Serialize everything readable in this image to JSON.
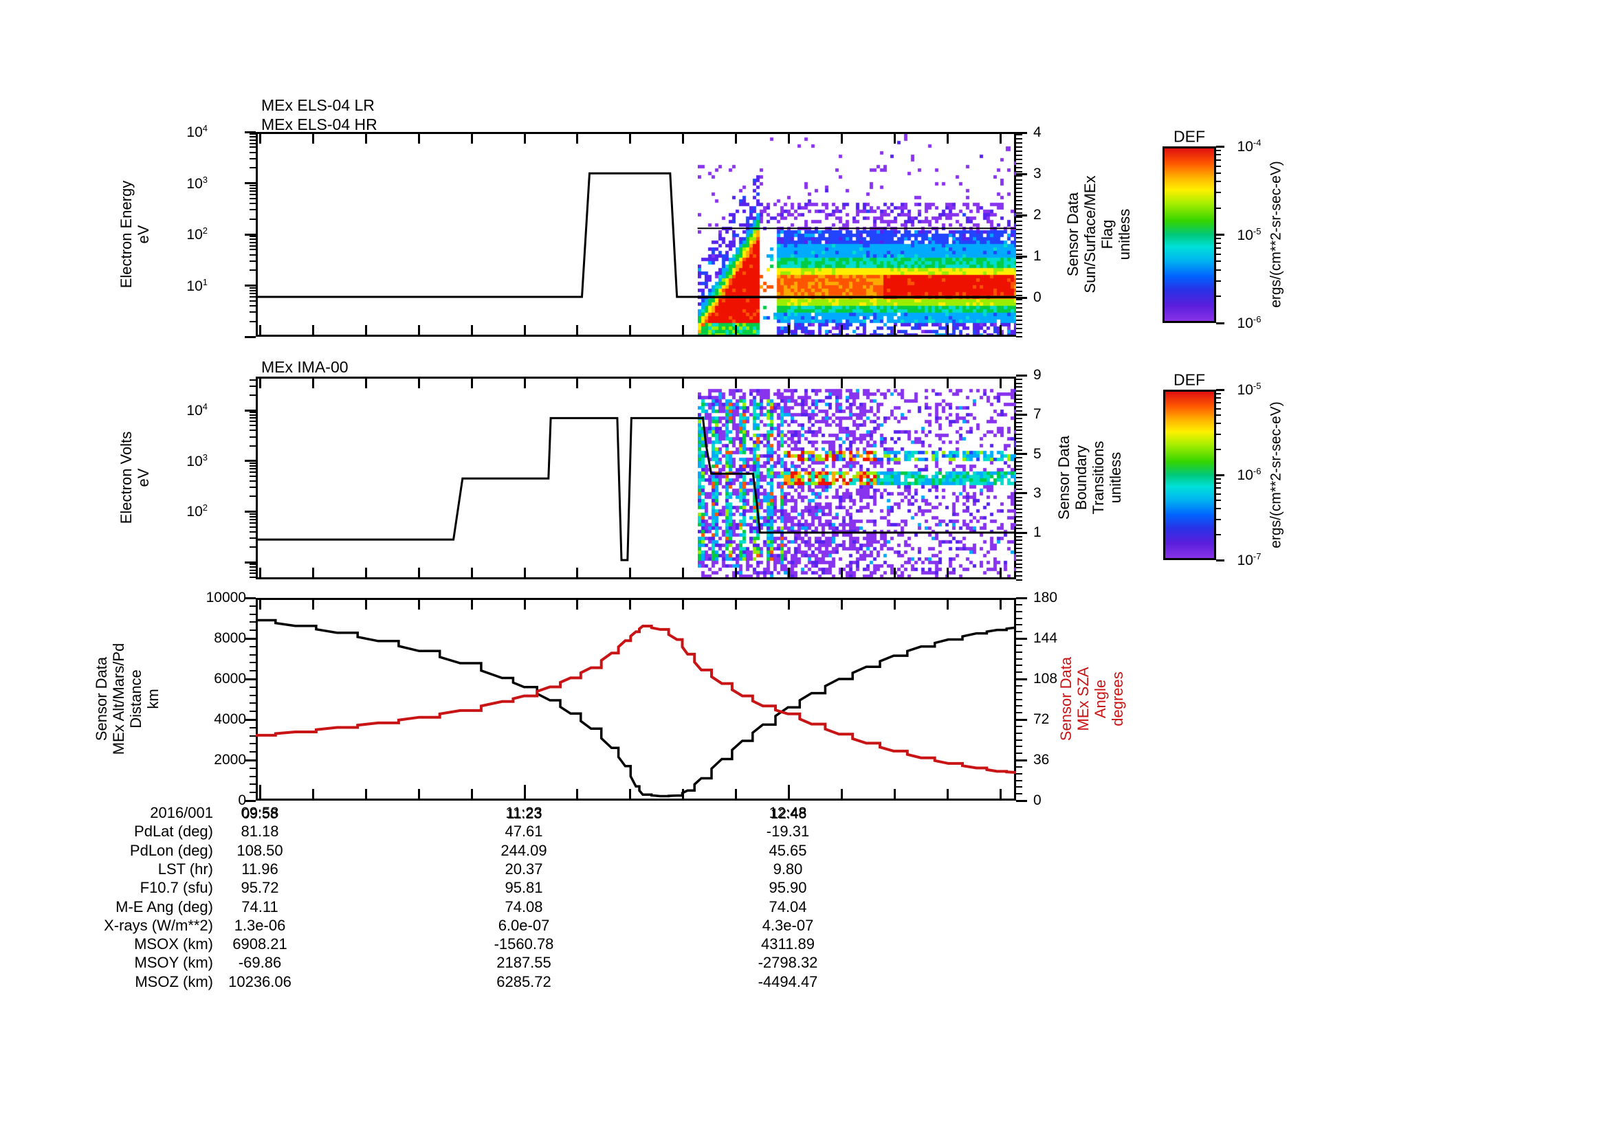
{
  "page_title": "MEx ELS/IMA survey plot",
  "panels": {
    "els": {
      "titles": [
        "MEx ELS-04 LR",
        "MEx ELS-04 HR"
      ],
      "left_axis": {
        "title": "Electron Energy\neV",
        "tick_exponents": [
          "4",
          "3",
          "2",
          "1"
        ]
      },
      "right_axis": {
        "title": "Sensor Data\nSun/Surface/MEx\nFlag\nunitless",
        "ticks": [
          "4",
          "3",
          "2",
          "1",
          "0"
        ]
      }
    },
    "ima": {
      "titles": [
        "MEx IMA-00"
      ],
      "left_axis": {
        "title": "Electron Volts\neV",
        "tick_exponents": [
          "4",
          "3",
          "2"
        ]
      },
      "right_axis": {
        "title": "Sensor Data\nBoundary\nTransitions\nunitless",
        "ticks": [
          "9",
          "7",
          "5",
          "3",
          "1"
        ]
      }
    },
    "traj": {
      "left_axis": {
        "title": "Sensor Data\nMEx Alt/Mars/Pd\nDistance\nkm",
        "ticks": [
          "10000",
          "8000",
          "6000",
          "4000",
          "2000",
          "0"
        ]
      },
      "right_axis": {
        "title": "Sensor Data\nMEx SZA\nAngle\ndegrees",
        "ticks": [
          "180",
          "144",
          "108",
          "72",
          "36",
          "0"
        ],
        "color": "#c81414"
      }
    }
  },
  "colorbars": [
    {
      "title": "DEF",
      "tick_labels": [
        [
          "10",
          "-4"
        ],
        [
          "10",
          "-5"
        ],
        [
          "10",
          "-6"
        ]
      ],
      "unit": "ergs/(cm**2-sr-sec-eV)"
    },
    {
      "title": "DEF",
      "tick_labels": [
        [
          "10",
          "-5"
        ],
        [
          "10",
          "-6"
        ],
        [
          "10",
          "-7"
        ]
      ],
      "unit": "ergs/(cm**2-sr-sec-eV)"
    }
  ],
  "time_axis": {
    "date": "2016/001",
    "tick_labels": [
      "09:58",
      "11:23",
      "12:48"
    ]
  },
  "table": {
    "date_label": "2016/001",
    "times": [
      "09:58",
      "11:23",
      "12:48"
    ],
    "rows": [
      {
        "label": "PdLat (deg)",
        "values": [
          "81.18",
          "47.61",
          "-19.31"
        ]
      },
      {
        "label": "PdLon (deg)",
        "values": [
          "108.50",
          "244.09",
          "45.65"
        ]
      },
      {
        "label": "LST (hr)",
        "values": [
          "11.96",
          "20.37",
          "9.80"
        ]
      },
      {
        "label": "F10.7 (sfu)",
        "values": [
          "95.72",
          "95.81",
          "95.90"
        ]
      },
      {
        "label": "M-E Ang (deg)",
        "values": [
          "74.11",
          "74.08",
          "74.04"
        ]
      },
      {
        "label": "X-rays (W/m**2)",
        "values": [
          "1.3e-06",
          "6.0e-07",
          "4.3e-07"
        ]
      },
      {
        "label": "MSOX (km)",
        "values": [
          "6908.21",
          "-1560.78",
          "4311.89"
        ]
      },
      {
        "label": "MSOY (km)",
        "values": [
          "-69.86",
          "2187.55",
          "-2798.32"
        ]
      },
      {
        "label": "MSOZ (km)",
        "values": [
          "10236.06",
          "6285.72",
          "-4494.47"
        ]
      }
    ]
  },
  "chart_data": [
    {
      "type": "line+spectrogram",
      "title": "MEx ELS-04 LR / MEx ELS-04 HR",
      "ylabel": "Electron Energy (eV)",
      "ylog_range": [
        1,
        10000
      ],
      "right_axis": {
        "label": "Sun/Surface/MEx Flag (unitless)",
        "range": [
          -0.95,
          4.0
        ]
      },
      "x_range_time": [
        "09:57",
        "14:01"
      ],
      "energy_sweep_line_eV": [
        [
          0,
          6
        ],
        [
          0.429,
          6
        ],
        [
          0.439,
          1550
        ],
        [
          0.545,
          1550
        ],
        [
          0.554,
          6
        ],
        [
          1,
          6
        ]
      ],
      "flag_lines": [
        {
          "value": 0.0,
          "from": 0.581,
          "to": 1.0
        },
        {
          "value": 1.68,
          "from": 0.581,
          "to": 1.0
        }
      ],
      "spectrogram_start_frac": 0.581,
      "colorbar": {
        "title": "DEF",
        "range_ergs": [
          "1e-6",
          "1e-4"
        ]
      }
    },
    {
      "type": "line+spectrogram",
      "title": "MEx IMA-00",
      "ylabel": "Electron Volts (eV)",
      "ylog_range": [
        4.6,
        46000
      ],
      "right_axis": {
        "label": "Boundary Transitions (unitless)",
        "range": [
          -1.4,
          9.1
        ]
      },
      "energy_sweep_line_eV": [
        [
          0,
          28
        ],
        [
          0.26,
          28
        ],
        [
          0.272,
          450
        ],
        [
          0.385,
          450
        ],
        [
          0.388,
          7000
        ],
        [
          0.4755,
          7000
        ],
        [
          0.481,
          11
        ],
        [
          0.489,
          11
        ],
        [
          0.494,
          7000
        ],
        [
          0.588,
          7000
        ]
      ],
      "boundary_line_flag": [
        [
          0.588,
          6.9
        ],
        [
          0.592,
          5.5
        ],
        [
          0.599,
          4.0
        ],
        [
          0.654,
          4.0
        ],
        [
          0.659,
          2.5
        ],
        [
          0.663,
          1.0
        ],
        [
          1.0,
          1.0
        ]
      ],
      "spectrogram_start_frac": 0.581,
      "colorbar": {
        "title": "DEF",
        "range_ergs": [
          "1e-7",
          "1e-5"
        ]
      }
    },
    {
      "type": "line",
      "ylabel_left": "MEx Alt/Mars/Pd Distance (km)",
      "ylim_left": [
        0,
        10000
      ],
      "ylabel_right": "MEx SZA Angle (degrees)",
      "ylim_right": [
        0,
        180
      ],
      "series": [
        {
          "name": "altitude_km",
          "axis": "left",
          "color": "#000000",
          "x_frac": [
            0,
            0.052,
            0.107,
            0.161,
            0.215,
            0.269,
            0.324,
            0.353,
            0.387,
            0.414,
            0.441,
            0.468,
            0.486,
            0.5,
            0.509,
            0.532,
            0.554,
            0.568,
            0.586,
            0.613,
            0.64,
            0.667,
            0.7,
            0.731,
            0.767,
            0.803,
            0.839,
            0.875,
            0.911,
            0.948,
            0.975,
            1.0
          ],
          "values": [
            8900,
            8620,
            8280,
            7870,
            7380,
            6780,
            6050,
            5600,
            4950,
            4300,
            3550,
            2600,
            1700,
            700,
            300,
            220,
            250,
            500,
            1100,
            2050,
            2950,
            3750,
            4600,
            5300,
            6000,
            6600,
            7150,
            7600,
            7950,
            8250,
            8420,
            8540
          ]
        },
        {
          "name": "sza_deg",
          "axis": "right",
          "color": "#c81414",
          "x_frac": [
            0,
            0.052,
            0.107,
            0.161,
            0.215,
            0.269,
            0.324,
            0.353,
            0.387,
            0.414,
            0.441,
            0.468,
            0.486,
            0.5,
            0.509,
            0.532,
            0.554,
            0.568,
            0.586,
            0.613,
            0.64,
            0.667,
            0.7,
            0.731,
            0.767,
            0.803,
            0.839,
            0.875,
            0.911,
            0.948,
            0.975,
            1.0
          ],
          "values": [
            58,
            61,
            65,
            69,
            74,
            80,
            88,
            93,
            101,
            109,
            118,
            131,
            142,
            150,
            155,
            152,
            143,
            130,
            116,
            104,
            93,
            84,
            77,
            68,
            59,
            51,
            44,
            38,
            33,
            29,
            26,
            25
          ]
        }
      ]
    }
  ]
}
